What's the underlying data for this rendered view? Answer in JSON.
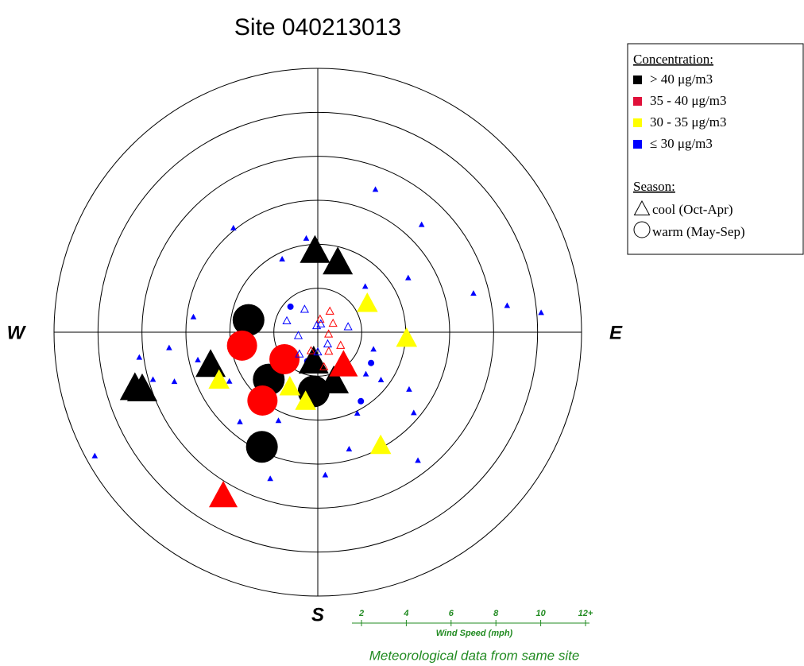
{
  "chart_data": {
    "type": "polar-scatter",
    "title": "Site 040213013",
    "compass": {
      "west": "W",
      "east": "E",
      "south": "S"
    },
    "rlim": [
      0,
      12
    ],
    "rticks": [
      2,
      4,
      6,
      8,
      10,
      {
        "value": 12,
        "label": "12+"
      }
    ],
    "r_label": "Wind Speed (mph)",
    "note": "Meteorological data from same site",
    "legend": {
      "concentration_title": "Concentration:",
      "concentration": [
        {
          "label": "> 40 μg/m3",
          "color": "#000000"
        },
        {
          "label": "35 - 40 μg/m3",
          "color": "#e0103a"
        },
        {
          "label": "30 - 35 μg/m3",
          "color": "#ffff00"
        },
        {
          "label": "≤ 30 μg/m3",
          "color": "#0000ff"
        }
      ],
      "season_title": "Season:",
      "season": [
        {
          "label": "cool (Oct-Apr)",
          "marker": "triangle"
        },
        {
          "label": "warm (May-Sep)",
          "marker": "circle"
        }
      ]
    },
    "series": [
      {
        "color": "#0000ff",
        "marker": "triangle",
        "theta": [
          22,
          321,
          44,
          76,
          82,
          85,
          59,
          241,
          262,
          254,
          251,
          277,
          257,
          264,
          334,
          353,
          46,
          107,
          127,
          122,
          130,
          142,
          165,
          177,
          198,
          221,
          204,
          154,
          131,
          241
        ],
        "r": [
          7.0,
          6.1,
          6.8,
          7.3,
          8.7,
          10.2,
          4.8,
          11.6,
          8.2,
          7.8,
          6.9,
          5.7,
          5.6,
          6.8,
          3.7,
          4.3,
          3.0,
          2.65,
          3.6,
          4.9,
          5.7,
          7.4,
          5.5,
          6.5,
          7.0,
          5.4,
          4.4,
          4.1,
          2.9,
          4.6
        ]
      },
      {
        "color": "#0000ff",
        "marker": "circle",
        "theta": [
          148,
          313,
          120,
          230,
          200
        ],
        "r": [
          3.7,
          1.7,
          2.8,
          2.4,
          1.4
        ]
      },
      {
        "color": "#000000",
        "marker": "triangle",
        "theta": [
          358,
          16,
          253,
          253,
          252,
          188,
          162
        ],
        "r": [
          3.7,
          3.3,
          5.1,
          8.7,
          8.4,
          1.35,
          2.35
        ]
      },
      {
        "color": "#000000",
        "marker": "circle",
        "theta": [
          280,
          206,
          226,
          184
        ],
        "r": [
          3.2,
          5.8,
          3.1,
          2.7
        ]
      },
      {
        "color": "#ff0000",
        "marker": "circle",
        "theta": [
          260,
          219,
          231
        ],
        "r": [
          3.5,
          4.0,
          1.95
        ]
      },
      {
        "color": "#ff0000",
        "marker": "triangle",
        "theta": [
          210,
          142
        ],
        "r": [
          8.6,
          1.9
        ]
      },
      {
        "color": "#ffff00",
        "marker": "triangle",
        "theta": [
          60,
          94,
          151,
          244,
          190,
          207
        ],
        "r": [
          2.6,
          4.05,
          5.9,
          5.0,
          3.2,
          2.8
        ]
      },
      {
        "color": "#ff0000",
        "marker": "triangle",
        "hollow": true,
        "theta": [
          10,
          60,
          120,
          150,
          170,
          200,
          30,
          100
        ],
        "r": [
          0.6,
          0.8,
          1.2,
          1.0,
          1.6,
          0.9,
          1.1,
          0.5
        ]
      },
      {
        "color": "#0000ff",
        "marker": "triangle",
        "hollow": true,
        "theta": [
          330,
          290,
          260,
          20,
          80,
          140,
          220,
          350,
          180
        ],
        "r": [
          1.2,
          1.5,
          0.9,
          0.4,
          1.4,
          0.7,
          1.3,
          0.3,
          0.9
        ]
      }
    ]
  }
}
